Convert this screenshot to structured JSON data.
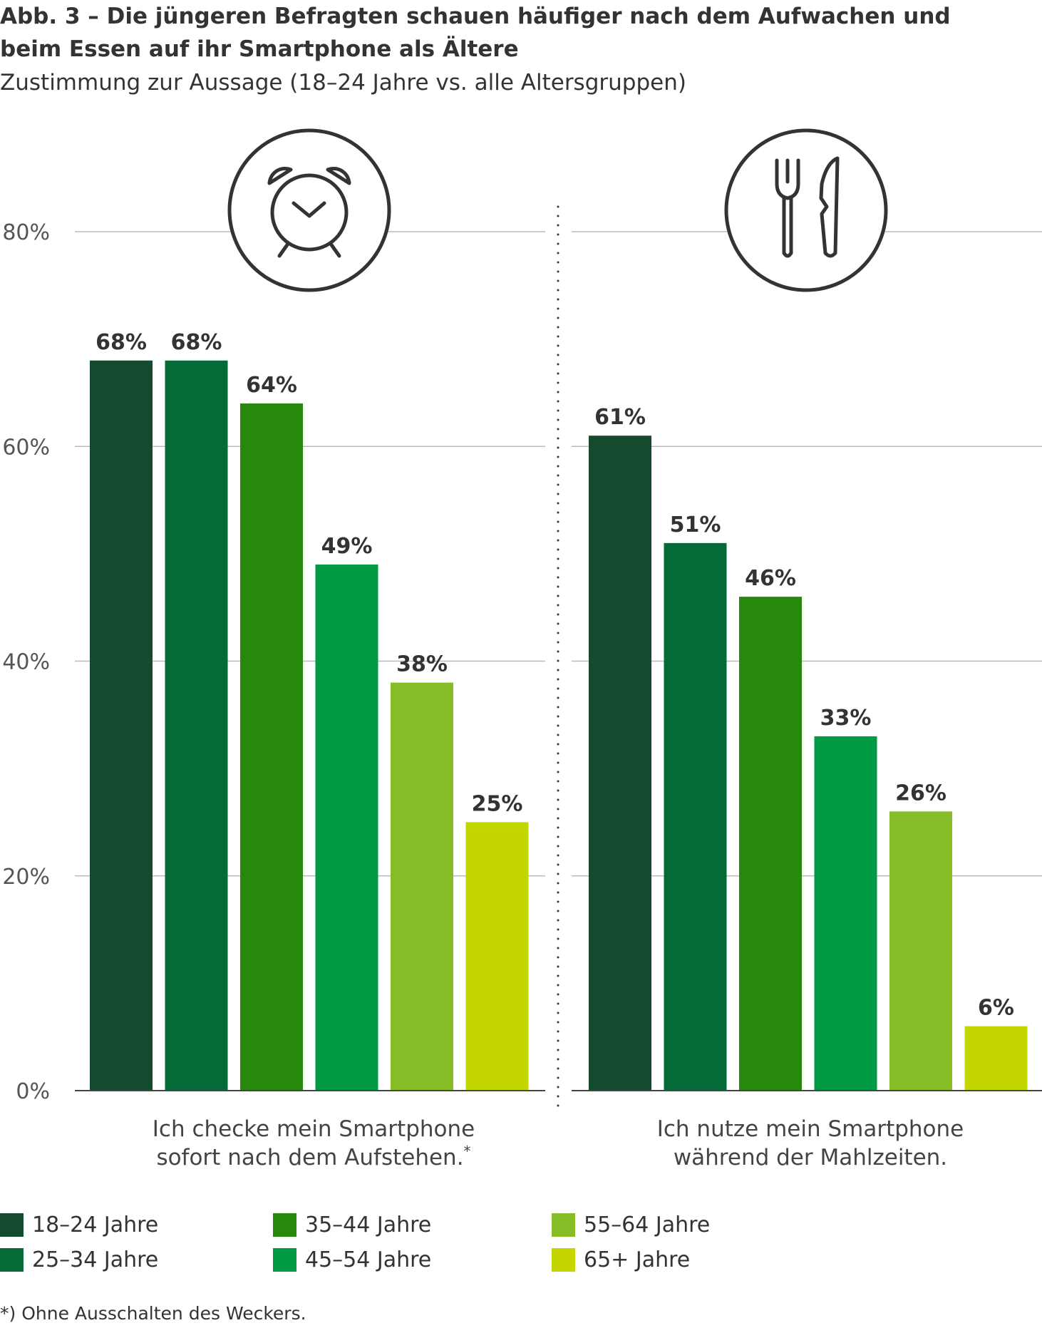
{
  "title": {
    "line1": "Abb. 3 – Die jüngeren Befragten schauen häufiger nach dem Aufwachen und",
    "line2": "beim Essen auf ihr Smartphone als Ältere"
  },
  "subtitle": "Zustimmung zur Aussage (18–24 Jahre vs. alle Altersgruppen)",
  "footnote": "*) Ohne Ausschalten des Weckers.",
  "colors": [
    "#144a2e",
    "#046a38",
    "#26890d",
    "#009a44",
    "#86bc25",
    "#c4d600"
  ],
  "chart_data": {
    "type": "bar",
    "ylim": [
      0,
      80
    ],
    "yticks": [
      "0%",
      "20%",
      "40%",
      "60%",
      "80%"
    ],
    "series_names": [
      "18–24 Jahre",
      "25–34 Jahre",
      "35–44 Jahre",
      "45–54 Jahre",
      "55–64 Jahre",
      "65+ Jahre"
    ],
    "panels": [
      {
        "icon": "alarm-clock-icon",
        "label_line1": "Ich checke mein Smartphone",
        "label_line2": "sofort nach dem Aufstehen.",
        "label_sup": "*",
        "values": [
          68,
          68,
          64,
          49,
          38,
          25
        ],
        "value_labels": [
          "68%",
          "68%",
          "64%",
          "49%",
          "38%",
          "25%"
        ]
      },
      {
        "icon": "fork-knife-icon",
        "label_line1": "Ich nutze mein Smartphone",
        "label_line2": "während der Mahlzeiten.",
        "label_sup": "",
        "values": [
          61,
          51,
          46,
          33,
          26,
          6
        ],
        "value_labels": [
          "61%",
          "51%",
          "46%",
          "33%",
          "26%",
          "6%"
        ]
      }
    ]
  },
  "legend": [
    {
      "label": "18–24 Jahre"
    },
    {
      "label": "25–34 Jahre"
    },
    {
      "label": "35–44 Jahre"
    },
    {
      "label": "45–54 Jahre"
    },
    {
      "label": "55–64 Jahre"
    },
    {
      "label": "65+ Jahre"
    }
  ]
}
